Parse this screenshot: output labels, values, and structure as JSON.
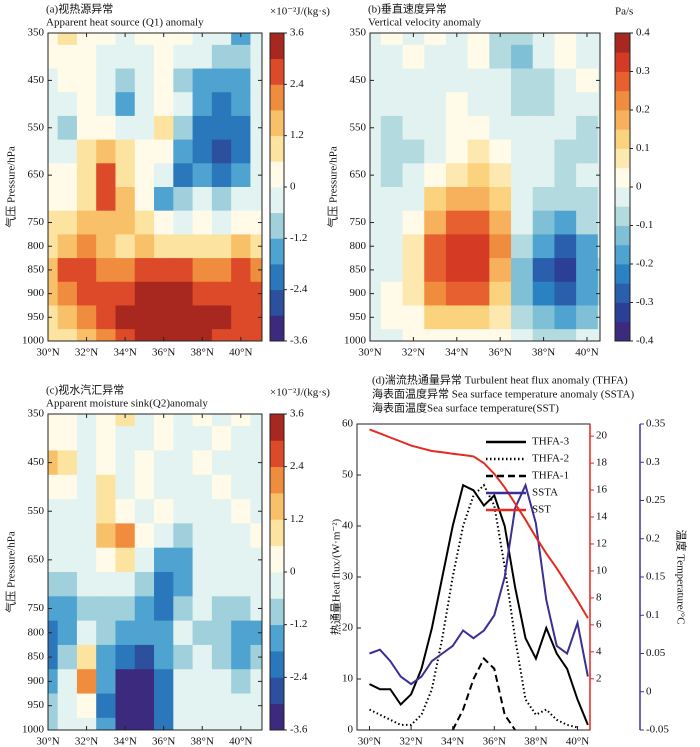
{
  "chart_data": [
    {
      "type": "heatmap",
      "title": "(a)视热源异常",
      "subtitle": "Apparent heat source (Q1) anomaly",
      "unit_label": "×10⁻²J/(kg·s)",
      "y_label": "气压 Pressure/hPa",
      "x": [
        30,
        31,
        32,
        33,
        34,
        35,
        36,
        37,
        38,
        39,
        40,
        41
      ],
      "y": [
        350,
        400,
        450,
        500,
        550,
        600,
        650,
        700,
        750,
        800,
        850,
        900,
        950,
        1000
      ],
      "values": [
        [
          0.3,
          0.8,
          0.5,
          0.3,
          0,
          0.2,
          0.5,
          0.3,
          0,
          -0.5,
          -1.5,
          0
        ],
        [
          0.2,
          0.5,
          0.3,
          0,
          -0.5,
          0,
          0.3,
          0,
          -0.5,
          -0.8,
          -1,
          0
        ],
        [
          0,
          0.3,
          0.5,
          -0.3,
          -1,
          -0.5,
          0.3,
          -0.8,
          -1.5,
          -1.5,
          -1.2,
          0
        ],
        [
          -0.3,
          0,
          0.5,
          -0.5,
          -1.2,
          -0.3,
          0.5,
          -0.5,
          -1.5,
          -1.8,
          -1.5,
          -0.5
        ],
        [
          -0.2,
          -0.8,
          0.5,
          0.3,
          -0.5,
          0,
          0.8,
          -1,
          -2,
          -2.2,
          -1.8,
          -0.5
        ],
        [
          0,
          -0.3,
          1,
          1.5,
          0.8,
          0.3,
          0.5,
          -1.5,
          -2.2,
          -2.8,
          -2,
          -0.3
        ],
        [
          0.3,
          0.3,
          1.2,
          2.8,
          1,
          0.5,
          -0.5,
          -1.8,
          -1.5,
          -2,
          -1.2,
          0
        ],
        [
          0.5,
          0.5,
          1.2,
          2.5,
          1.5,
          0.5,
          -1.2,
          -1,
          -0.5,
          -0.8,
          -0.3,
          0
        ],
        [
          0.8,
          1,
          1.5,
          1.8,
          1.5,
          1,
          0.3,
          0,
          0.3,
          0,
          0.5,
          0.5
        ],
        [
          1.2,
          1.8,
          2.2,
          1.5,
          1.2,
          1.5,
          1.2,
          1,
          1,
          1.2,
          1.5,
          1
        ],
        [
          1.8,
          2.5,
          3,
          2.2,
          2,
          2.5,
          2.8,
          2.5,
          2.2,
          2,
          2.5,
          2
        ],
        [
          1.5,
          2.2,
          2.5,
          2.5,
          3,
          3.2,
          3.5,
          3.2,
          3,
          3,
          2.8,
          2.5
        ],
        [
          1,
          1.5,
          2,
          2.5,
          3.2,
          3.5,
          3.6,
          3.5,
          3.3,
          3.2,
          3,
          2.8
        ],
        [
          0.8,
          1.2,
          1.5,
          2,
          3,
          3.3,
          3.5,
          3.5,
          3.2,
          3,
          3,
          2.8
        ]
      ],
      "xlim": [
        30,
        41.1
      ],
      "xticks": [
        {
          "value": 30,
          "label": "30°N"
        },
        {
          "value": 32,
          "label": "32°N"
        },
        {
          "value": 34,
          "label": "34°N"
        },
        {
          "value": 36,
          "label": "36°N"
        },
        {
          "value": 38,
          "label": "38°N"
        },
        {
          "value": 40,
          "label": "40°N"
        }
      ],
      "ylim": [
        350,
        1000
      ],
      "y_inverted": true,
      "yticks": [
        350,
        450,
        550,
        650,
        750,
        800,
        850,
        900,
        950,
        1000
      ],
      "levels": [
        -3.6,
        -3,
        -2.4,
        -1.8,
        -1.2,
        -0.6,
        0,
        0.6,
        1.2,
        1.8,
        2.4,
        3,
        3.6
      ],
      "colors": [
        "#3b2a7e",
        "#2c4f9e",
        "#2a78bb",
        "#4ea3d0",
        "#9fd0dc",
        "#e2f3f1",
        "#fffbe8",
        "#fde3a0",
        "#f9c06a",
        "#f08c3e",
        "#dd4a2a",
        "#a8281f"
      ],
      "cticks": [
        3.6,
        2.4,
        1.2,
        0,
        -1.2,
        -2.4,
        -3.6
      ]
    },
    {
      "type": "heatmap",
      "title": "(b)垂直速度异常",
      "subtitle": "Vertical velocity anomaly",
      "unit_label": "Pa/s",
      "y_label": "气压 Pressure/hPa",
      "x": [
        30,
        31,
        32,
        33,
        34,
        35,
        36,
        37,
        38,
        39,
        40,
        41
      ],
      "y": [
        350,
        400,
        450,
        500,
        550,
        600,
        650,
        700,
        750,
        800,
        850,
        900,
        950,
        1000
      ],
      "values": [
        [
          0,
          0.03,
          0,
          0.03,
          0,
          0.05,
          -0.05,
          -0.08,
          0,
          0.05,
          0,
          0
        ],
        [
          0,
          0,
          0.03,
          0,
          0,
          0.03,
          -0.05,
          -0.1,
          -0.03,
          0.03,
          0,
          0
        ],
        [
          0,
          0,
          0,
          0,
          0,
          0,
          -0.03,
          -0.08,
          -0.05,
          0,
          0.03,
          0
        ],
        [
          0,
          -0.03,
          0,
          0,
          0.03,
          0,
          0,
          -0.05,
          -0.05,
          -0.03,
          0,
          0
        ],
        [
          0,
          -0.05,
          -0.03,
          0,
          0.03,
          0.05,
          0,
          0,
          -0.03,
          -0.03,
          -0.05,
          0
        ],
        [
          -0.03,
          -0.05,
          -0.05,
          0,
          0.05,
          0.1,
          0.05,
          0,
          0,
          -0.05,
          -0.05,
          0
        ],
        [
          -0.03,
          -0.05,
          -0.03,
          0.05,
          0.1,
          0.12,
          0.08,
          0,
          -0.03,
          -0.05,
          0,
          0
        ],
        [
          -0.03,
          -0.03,
          0,
          0.12,
          0.2,
          0.2,
          0.12,
          0,
          -0.05,
          -0.08,
          -0.05,
          0
        ],
        [
          -0.03,
          0,
          0.05,
          0.2,
          0.3,
          0.3,
          0.2,
          0,
          -0.1,
          -0.15,
          -0.08,
          0
        ],
        [
          -0.03,
          0,
          0.1,
          0.3,
          0.35,
          0.35,
          0.25,
          -0.05,
          -0.15,
          -0.25,
          -0.15,
          -0.03
        ],
        [
          -0.03,
          0,
          0.1,
          0.3,
          0.35,
          0.35,
          0.2,
          -0.1,
          -0.25,
          -0.3,
          -0.18,
          -0.05
        ],
        [
          -0.03,
          0.03,
          0.1,
          0.25,
          0.3,
          0.3,
          0.15,
          -0.1,
          -0.2,
          -0.25,
          -0.15,
          -0.05
        ],
        [
          0,
          0.03,
          0.05,
          0.15,
          0.15,
          0.15,
          0.1,
          -0.05,
          -0.12,
          -0.15,
          -0.1,
          -0.03
        ],
        [
          0,
          0,
          0.03,
          0.05,
          0.05,
          0.05,
          0.03,
          0,
          -0.05,
          -0.05,
          -0.03,
          0
        ]
      ],
      "xlim": [
        30,
        40.6
      ],
      "xticks": [
        {
          "value": 30,
          "label": "30°N"
        },
        {
          "value": 32,
          "label": "32°N"
        },
        {
          "value": 34,
          "label": "34°N"
        },
        {
          "value": 36,
          "label": "36°N"
        },
        {
          "value": 38,
          "label": "38°N"
        },
        {
          "value": 40,
          "label": "40°N"
        }
      ],
      "ylim": [
        350,
        1000
      ],
      "y_inverted": true,
      "yticks": [
        350,
        450,
        550,
        650,
        750,
        800,
        850,
        900,
        950,
        1000
      ],
      "levels": [
        -0.4,
        -0.35,
        -0.3,
        -0.25,
        -0.2,
        -0.15,
        -0.1,
        -0.05,
        0,
        0.05,
        0.1,
        0.15,
        0.2,
        0.25,
        0.3,
        0.35,
        0.4
      ],
      "colors": [
        "#3b2a7e",
        "#2c3f96",
        "#2a5fae",
        "#2a82c2",
        "#4ea3d0",
        "#80c0d6",
        "#b3dadf",
        "#e2f2f0",
        "#fffbe8",
        "#fde9b0",
        "#fbd27e",
        "#f7b05c",
        "#f08c3e",
        "#e6612f",
        "#d43a24",
        "#a8281f"
      ],
      "cticks": [
        0.4,
        0.3,
        0.2,
        0.1,
        0,
        -0.1,
        -0.2,
        -0.3,
        -0.4
      ]
    },
    {
      "type": "heatmap",
      "title": "(c)视水汽汇异常",
      "subtitle": "Apparent moisture sink(Q2)anomaly",
      "unit_label": "×10⁻²J/(kg·s)",
      "y_label": "气压 Pressure/hPa",
      "x": [
        30,
        31,
        32,
        33,
        34,
        35,
        36,
        37,
        38,
        39,
        40,
        41
      ],
      "y": [
        350,
        400,
        450,
        500,
        550,
        600,
        650,
        700,
        750,
        800,
        850,
        900,
        950,
        1000
      ],
      "values": [
        [
          0.3,
          0.3,
          -0.3,
          0.3,
          0.8,
          -0.3,
          0.3,
          -0.5,
          0.3,
          0,
          0.3,
          0
        ],
        [
          0.5,
          0.5,
          0,
          0.5,
          -0.3,
          0,
          0.3,
          -0.3,
          0,
          0.3,
          0,
          0
        ],
        [
          1.5,
          0.8,
          -0.5,
          0.5,
          -0.5,
          0.3,
          -0.3,
          0,
          0.3,
          0,
          -0.5,
          -0.5
        ],
        [
          0.5,
          0.3,
          -0.5,
          1,
          -0.3,
          0.5,
          0,
          -0.3,
          0,
          0.3,
          0,
          0
        ],
        [
          0,
          0,
          -0.3,
          0.8,
          0.5,
          0,
          0.3,
          -0.5,
          0,
          0,
          0.3,
          0
        ],
        [
          -0.3,
          -0.5,
          0,
          1.5,
          2.2,
          0.3,
          -0.5,
          -0.8,
          0,
          0,
          0,
          0.3
        ],
        [
          -0.5,
          -0.5,
          -0.5,
          0.5,
          1,
          -0.5,
          -1.5,
          -1.5,
          -0.3,
          0,
          -0.3,
          0
        ],
        [
          -0.8,
          -1,
          -0.5,
          -0.5,
          -0.5,
          -1,
          -2,
          -1.5,
          -0.5,
          -0.3,
          -0.5,
          -0.3
        ],
        [
          -1.2,
          -1.5,
          -0.8,
          -0.8,
          -1,
          -1.2,
          -1.8,
          -1,
          -0.5,
          -0.8,
          -0.8,
          -0.5
        ],
        [
          -1.8,
          -1.2,
          -0.5,
          -1,
          -1.5,
          -1.5,
          -1.2,
          -0.5,
          -0.8,
          -1,
          -1.5,
          -1.2
        ],
        [
          -2,
          -0.8,
          1,
          -1.5,
          -2,
          -2.5,
          -1.5,
          -0.8,
          -0.5,
          -0.8,
          -1.2,
          -1
        ],
        [
          -1.5,
          -0.5,
          2,
          -1.5,
          -3,
          -3,
          -1.8,
          -0.5,
          -0.3,
          -0.5,
          -0.8,
          -0.5
        ],
        [
          -1,
          -0.5,
          0.5,
          -1.8,
          -3.5,
          -3.3,
          -2,
          -0.5,
          -0.3,
          -0.3,
          -0.5,
          -0.3
        ],
        [
          -0.8,
          -0.5,
          -0.5,
          -1.5,
          -3.3,
          -3.5,
          -2,
          -0.5,
          -0.3,
          -0.3,
          -0.5,
          -0.3
        ]
      ],
      "xlim": [
        30,
        41.1
      ],
      "xticks": [
        {
          "value": 30,
          "label": "30°N"
        },
        {
          "value": 32,
          "label": "32°N"
        },
        {
          "value": 34,
          "label": "34°N"
        },
        {
          "value": 36,
          "label": "36°N"
        },
        {
          "value": 38,
          "label": "38°N"
        },
        {
          "value": 40,
          "label": "40°N"
        }
      ],
      "ylim": [
        350,
        1000
      ],
      "y_inverted": true,
      "yticks": [
        350,
        450,
        550,
        650,
        750,
        800,
        850,
        900,
        950,
        1000
      ],
      "levels": [
        -3.6,
        -3,
        -2.4,
        -1.8,
        -1.2,
        -0.6,
        0,
        0.6,
        1.2,
        1.8,
        2.4,
        3,
        3.6
      ],
      "colors": [
        "#3b2a7e",
        "#2c4f9e",
        "#2a78bb",
        "#4ea3d0",
        "#9fd0dc",
        "#e2f3f1",
        "#fffbe8",
        "#fde3a0",
        "#f9c06a",
        "#f08c3e",
        "#dd4a2a",
        "#a8281f"
      ],
      "cticks": [
        3.6,
        2.4,
        1.2,
        0,
        -1.2,
        -2.4,
        -3.6
      ]
    },
    {
      "type": "line",
      "title_lines": [
        "(d)湍流热通量异常 Turbulent heat flux anomaly (THFA)",
        "海表面温度异常 Sea surface temperature anomaly (SSTA)",
        "海表面温度Sea surface temperature(SST)"
      ],
      "y_label": "热通量Heat flux/(W·m⁻²)",
      "y2_label": "温度 Temperature/°C",
      "x": [
        30,
        30.5,
        31,
        31.5,
        32,
        32.5,
        33,
        33.5,
        34,
        34.5,
        35,
        35.5,
        36,
        36.5,
        37,
        37.5,
        38,
        38.5,
        39,
        39.5,
        40,
        40.5
      ],
      "series": [
        {
          "name": "THFA-3",
          "color": "#000000",
          "dash": "solid",
          "values": [
            9,
            8,
            8,
            5,
            7,
            12,
            20,
            30,
            40,
            48,
            47,
            44,
            46,
            40,
            28,
            18,
            14,
            20,
            15,
            12,
            6,
            1
          ]
        },
        {
          "name": "THFA-2",
          "color": "#000000",
          "dash": "dot",
          "values": [
            4,
            3,
            2,
            1,
            1,
            3,
            8,
            18,
            30,
            40,
            46,
            48,
            44,
            32,
            18,
            6,
            3,
            4,
            2,
            1,
            0.5,
            null
          ]
        },
        {
          "name": "THFA-1",
          "color": "#000000",
          "dash": "dash",
          "values": [
            null,
            null,
            null,
            null,
            null,
            null,
            null,
            null,
            0,
            4,
            10,
            14,
            12,
            3,
            0,
            null,
            null,
            null,
            null,
            null,
            null,
            null
          ]
        },
        {
          "name": "SSTA",
          "color": "#3a2f95",
          "dash": "solid",
          "axis": "y2",
          "values": [
            0.05,
            0.055,
            0.04,
            0.02,
            0.01,
            0.02,
            0.04,
            0.05,
            0.06,
            0.08,
            0.07,
            0.08,
            0.1,
            0.15,
            0.24,
            0.27,
            0.22,
            0.12,
            0.06,
            0.05,
            0.09,
            0.02
          ]
        },
        {
          "name": "SST",
          "color": "#e52a20",
          "dash": "solid",
          "axis": "y3",
          "values": [
            20.5,
            20.2,
            19.9,
            19.6,
            19.3,
            19.1,
            18.9,
            18.8,
            18.7,
            18.6,
            18.5,
            18,
            17.2,
            16.2,
            15,
            13.8,
            12.5,
            11.3,
            10.2,
            9,
            7.8,
            6.5
          ]
        }
      ],
      "xlim": [
        29.4,
        40.6
      ],
      "xticks": [
        {
          "value": 30,
          "label": "30°N"
        },
        {
          "value": 32,
          "label": "32°N"
        },
        {
          "value": 34,
          "label": "34°N"
        },
        {
          "value": 36,
          "label": "36°N"
        },
        {
          "value": 38,
          "label": "38°N"
        },
        {
          "value": 40,
          "label": "40°N"
        }
      ],
      "ylim": [
        0,
        60
      ],
      "yticks": [
        0,
        10,
        20,
        30,
        40,
        50,
        60
      ],
      "y2lim": [
        -0.05,
        0.35
      ],
      "y2ticks": [
        -0.05,
        0,
        0.05,
        0.1,
        0.15,
        0.2,
        0.25,
        0.3,
        0.35
      ],
      "y2_color": "#3a3598",
      "y3lim": [
        -1.8,
        20.9
      ],
      "y3ticks": [
        2,
        4,
        6,
        8,
        10,
        12,
        14,
        16,
        18,
        20
      ],
      "y3_color": "#e8231c",
      "legend": "upper right"
    }
  ]
}
